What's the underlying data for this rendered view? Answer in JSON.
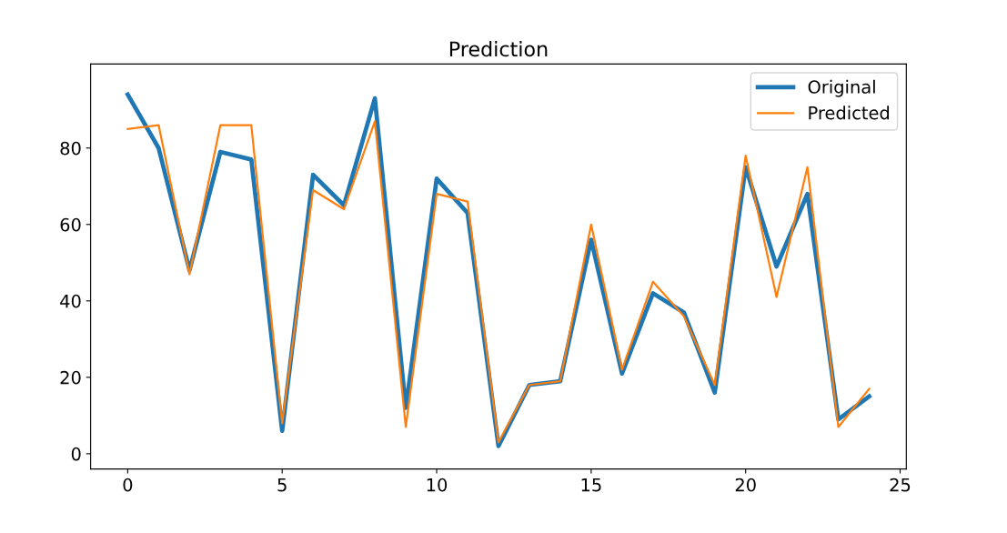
{
  "chart_data": {
    "type": "line",
    "title": "Prediction",
    "x": [
      0,
      1,
      2,
      3,
      4,
      5,
      6,
      7,
      8,
      9,
      10,
      11,
      12,
      13,
      14,
      15,
      16,
      17,
      18,
      19,
      20,
      21,
      22,
      23,
      24
    ],
    "series": [
      {
        "name": "Original",
        "color": "#1f77b4",
        "values": [
          94,
          80,
          48,
          79,
          77,
          6,
          73,
          65,
          93,
          12,
          72,
          63,
          2,
          18,
          19,
          56,
          21,
          42,
          37,
          16,
          75,
          49,
          68,
          9,
          15
        ]
      },
      {
        "name": "Predicted",
        "color": "#ff7f0e",
        "values": [
          85,
          86,
          47,
          86,
          86,
          8,
          69,
          64,
          87,
          7,
          68,
          66,
          3,
          18,
          19,
          60,
          22,
          45,
          36,
          18,
          78,
          41,
          75,
          7,
          17
        ]
      }
    ],
    "xlim": [
      -1.2,
      25.2
    ],
    "xticks": [
      0,
      5,
      10,
      15,
      20,
      25
    ],
    "ylim": [
      -4,
      102
    ],
    "yticks": [
      0,
      20,
      40,
      60,
      80
    ],
    "grid": false,
    "legend": "top right",
    "marker": "none",
    "line_style": "solid"
  }
}
